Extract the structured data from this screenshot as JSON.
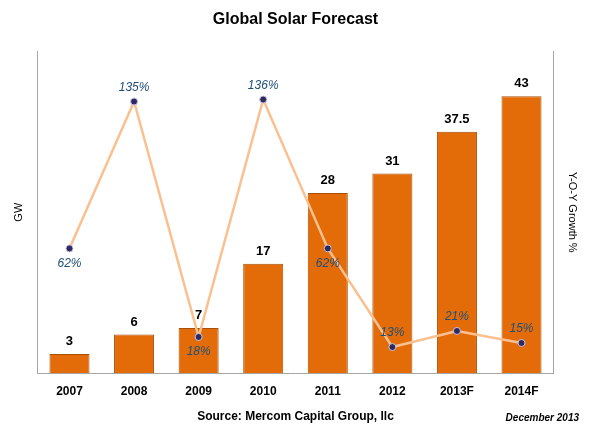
{
  "chart_data": {
    "type": "bar",
    "title": "Global Solar Forecast",
    "categories": [
      "2007",
      "2008",
      "2009",
      "2010",
      "2011",
      "2012",
      "2013F",
      "2014F"
    ],
    "xlabel": "Source: Mercom Capital Group, llc",
    "ylabel": "GW",
    "y2label": "Y-O-Y Growth %",
    "annotation": "December 2013",
    "ylim": [
      0,
      50
    ],
    "y2lim": [
      0,
      160
    ],
    "tick_labels": "x",
    "grid": false,
    "series": [
      {
        "type": "bar",
        "color": "#e36c09",
        "data_labels": true,
        "values": [
          3,
          6,
          7,
          17,
          28,
          31,
          37.5,
          43
        ]
      },
      {
        "type": "line",
        "axis": "y2",
        "color": "#fac090",
        "marker": "circle",
        "data_labels": true,
        "values": [
          62,
          135,
          18,
          136,
          62,
          13,
          21,
          15
        ],
        "value_labels": [
          "62%",
          "135%",
          "18%",
          "136%",
          "62%",
          "13%",
          "21%",
          "15%"
        ]
      }
    ]
  }
}
